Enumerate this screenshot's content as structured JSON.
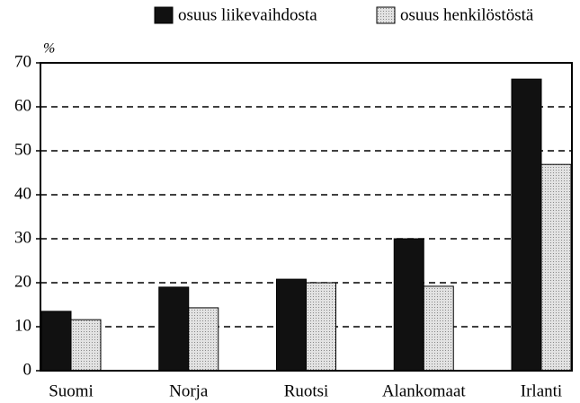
{
  "chart_data": {
    "type": "bar",
    "y_label": "%",
    "categories": [
      "Suomi",
      "Norja",
      "Ruotsi",
      "Alankomaat",
      "Irlanti"
    ],
    "series": [
      {
        "name": "osuus liikevaihdosta",
        "color": "#111111",
        "values": [
          13.5,
          19,
          20.8,
          30,
          66.3
        ]
      },
      {
        "name": "osuus henkilöstöstä",
        "color": "#d4d4d4",
        "values": [
          11.6,
          14.3,
          20,
          19.2,
          46.9
        ]
      }
    ],
    "ylim": [
      0,
      70
    ],
    "yticks": [
      0,
      10,
      20,
      30,
      40,
      50,
      60,
      70
    ],
    "grid": true,
    "legend": "top-right"
  }
}
